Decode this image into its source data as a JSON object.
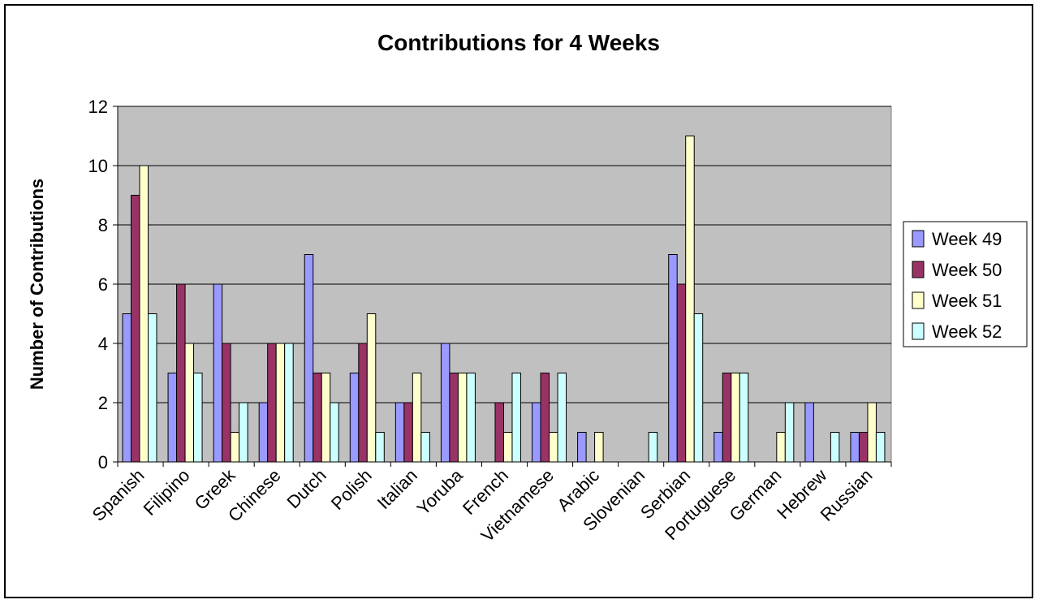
{
  "chart_data": {
    "type": "bar",
    "title": "Contributions for 4 Weeks",
    "xlabel": "",
    "ylabel": "Number of Contributions",
    "ylim": [
      0,
      12
    ],
    "yticks": [
      0,
      2,
      4,
      6,
      8,
      10,
      12
    ],
    "grid": true,
    "legend_position": "right",
    "categories": [
      "Spanish",
      "Filipino",
      "Greek",
      "Chinese",
      "Dutch",
      "Polish",
      "Italian",
      "Yoruba",
      "French",
      "Vietnamese",
      "Arabic",
      "Slovenian",
      "Serbian",
      "Portuguese",
      "German",
      "Hebrew",
      "Russian"
    ],
    "series": [
      {
        "name": "Week 49",
        "color": "#9999ff",
        "values": [
          5,
          3,
          6,
          2,
          7,
          3,
          2,
          4,
          0,
          2,
          1,
          0,
          7,
          1,
          0,
          2,
          1
        ]
      },
      {
        "name": "Week 50",
        "color": "#993366",
        "values": [
          9,
          6,
          4,
          4,
          3,
          4,
          2,
          3,
          2,
          3,
          0,
          0,
          6,
          3,
          0,
          0,
          1
        ]
      },
      {
        "name": "Week 51",
        "color": "#ffffcc",
        "values": [
          10,
          4,
          1,
          4,
          3,
          5,
          3,
          3,
          1,
          1,
          1,
          0,
          11,
          3,
          1,
          0,
          2
        ]
      },
      {
        "name": "Week 52",
        "color": "#ccffff",
        "values": [
          5,
          3,
          2,
          4,
          2,
          1,
          1,
          3,
          3,
          3,
          0,
          1,
          5,
          3,
          2,
          1,
          1
        ]
      }
    ],
    "plot_background": "#c0c0c0"
  }
}
